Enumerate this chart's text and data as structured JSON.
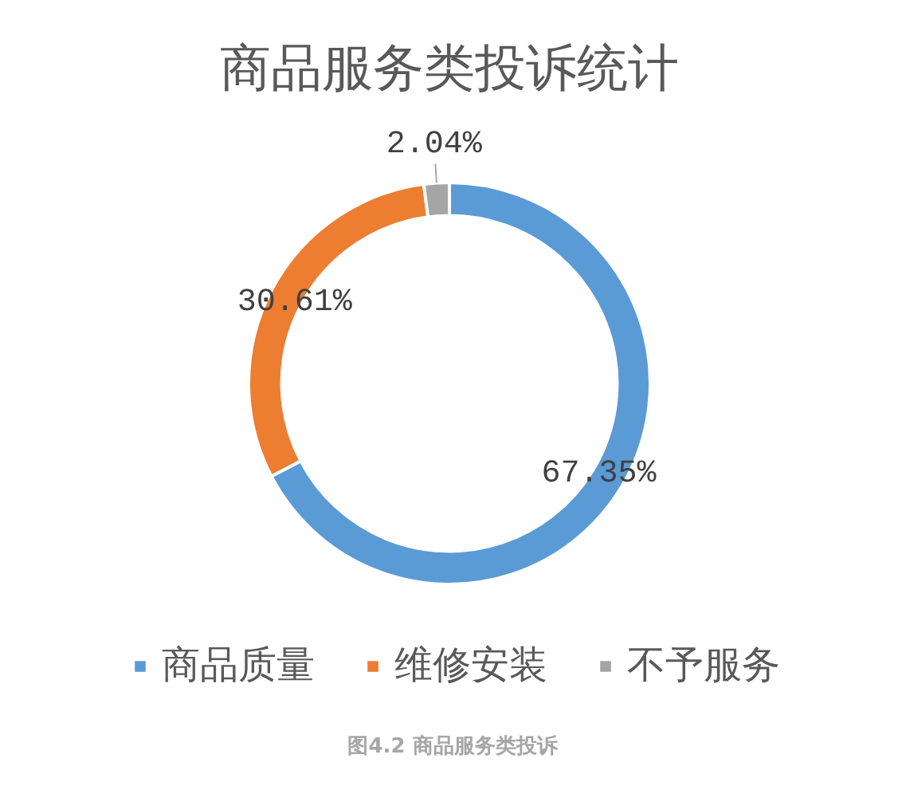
{
  "chart_data": {
    "type": "donut",
    "title": "商品服务类投诉统计",
    "categories": [
      "商品质量",
      "维修安装",
      "不予服务"
    ],
    "values": [
      67.35,
      30.61,
      2.04
    ],
    "colors": [
      "#5b9bd5",
      "#ed7d31",
      "#a5a5a5"
    ],
    "value_labels": [
      "67.35%",
      "30.61%",
      "2.04%"
    ],
    "legend": "bottom",
    "annotations": [
      "图4.2 商品服务类投诉"
    ]
  }
}
